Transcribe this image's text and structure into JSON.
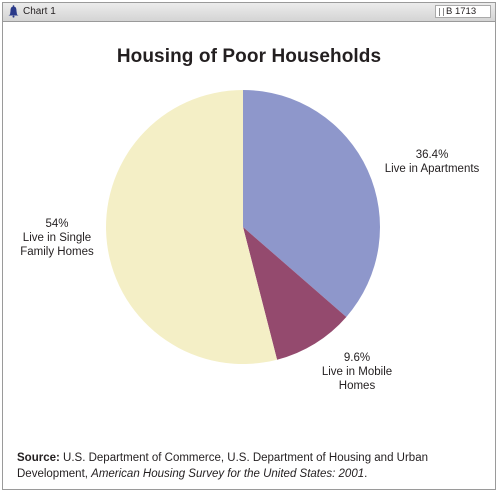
{
  "header": {
    "chart_number": "Chart 1",
    "report_code": "B 1713"
  },
  "source": {
    "label": "Source:",
    "text_pre": "U.S. Department of Commerce, U.S. Department of Housing and Urban Development, ",
    "title": "American Housing Survey for the United States: 2001",
    "text_post": "."
  },
  "colors": {
    "apartments": "#8e97cb",
    "mobile_homes": "#944a6e",
    "single_family": "#f4efc6",
    "frame_border": "#9a9a9a"
  },
  "chart_data": {
    "type": "pie",
    "title": "Housing of Poor Households",
    "slices": [
      {
        "label_lines": [
          "Live in Apartments"
        ],
        "value": 36.4,
        "value_label": "36.4%",
        "color": "#8e97cb"
      },
      {
        "label_lines": [
          "Live in Mobile",
          "Homes"
        ],
        "value": 9.6,
        "value_label": "9.6%",
        "color": "#944a6e"
      },
      {
        "label_lines": [
          "Live in Single",
          "Family Homes"
        ],
        "value": 54,
        "value_label": "54%",
        "color": "#f4efc6"
      }
    ],
    "start_angle_deg": 0,
    "direction": "clockwise"
  }
}
